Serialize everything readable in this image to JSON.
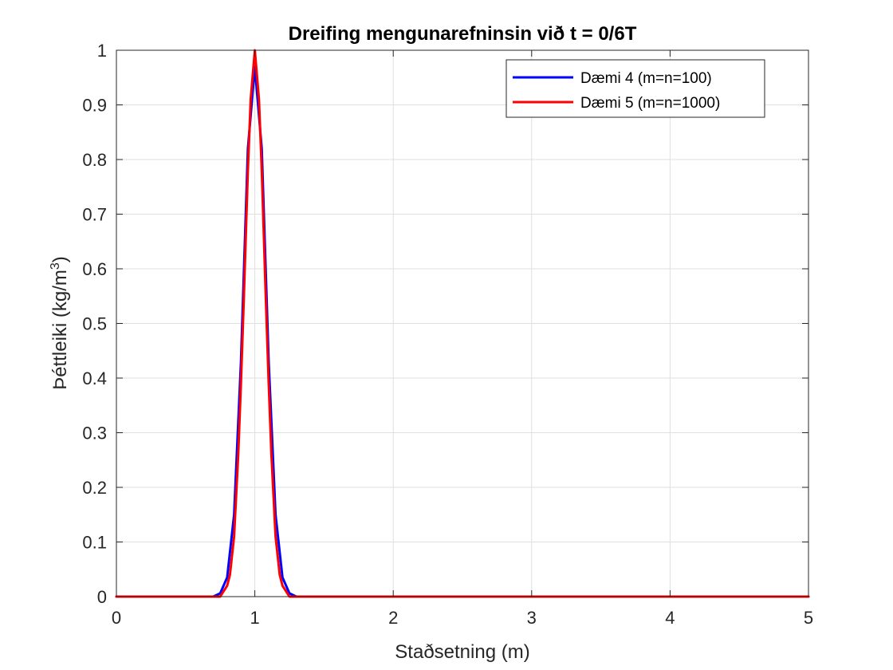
{
  "chart_data": {
    "type": "line",
    "title": "Dreifing mengunarefninsin við t = 0/6T",
    "xlabel": "Staðsetning (m)",
    "ylabel": "Þéttleiki (kg/m",
    "ylabel_superscript": "3",
    "ylabel_suffix": ")",
    "xlim": [
      0,
      5
    ],
    "ylim": [
      0,
      1
    ],
    "xticks": [
      "0",
      "1",
      "2",
      "3",
      "4",
      "5"
    ],
    "yticks": [
      "0",
      "0.1",
      "0.2",
      "0.3",
      "0.4",
      "0.5",
      "0.6",
      "0.7",
      "0.8",
      "0.9",
      "1"
    ],
    "grid": true,
    "legend_position": "top-right",
    "series": [
      {
        "name": "Dæmi 4 (m=n=100)",
        "color": "#0000ff",
        "x": [
          0,
          0.5,
          0.7,
          0.75,
          0.8,
          0.85,
          0.9,
          0.95,
          1.0,
          1.05,
          1.1,
          1.15,
          1.2,
          1.25,
          1.3,
          1.5,
          2,
          3,
          4,
          5
        ],
        "y": [
          0,
          0,
          0,
          0.006,
          0.035,
          0.15,
          0.43,
          0.82,
          0.97,
          0.82,
          0.43,
          0.15,
          0.035,
          0.006,
          0,
          0,
          0,
          0,
          0,
          0
        ]
      },
      {
        "name": "Dæmi 5 (m=n=1000)",
        "color": "#ff0000",
        "x": [
          0,
          0.5,
          0.7,
          0.75,
          0.8,
          0.82,
          0.85,
          0.88,
          0.9,
          0.92,
          0.95,
          0.97,
          1.0,
          1.03,
          1.05,
          1.08,
          1.1,
          1.12,
          1.15,
          1.18,
          1.2,
          1.25,
          1.3,
          1.5,
          2,
          3,
          4,
          5
        ],
        "y": [
          0,
          0,
          0,
          0,
          0.02,
          0.04,
          0.11,
          0.26,
          0.39,
          0.54,
          0.78,
          0.91,
          1.0,
          0.91,
          0.78,
          0.54,
          0.39,
          0.26,
          0.11,
          0.04,
          0.02,
          0,
          0,
          0,
          0,
          0,
          0,
          0
        ]
      }
    ]
  }
}
